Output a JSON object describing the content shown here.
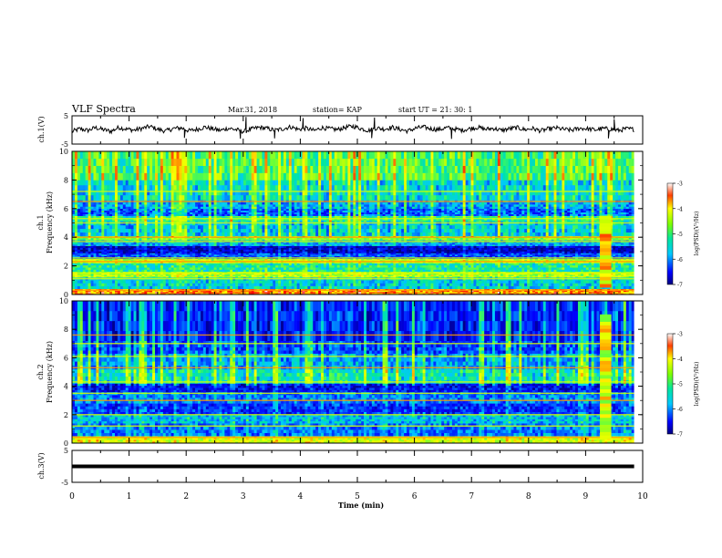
{
  "header": {
    "title": "VLF Spectra",
    "date": "Mar.31, 2018",
    "station": "station= KAP",
    "start_time": "start  UT  =   21: 30: 1"
  },
  "chart_data": [
    {
      "type": "line",
      "panel": "ch1-waveform",
      "ylabel": "ch.1(V)",
      "ylim": [
        -5,
        5
      ],
      "yticks": [
        -5,
        5
      ],
      "xlim": [
        0,
        10
      ],
      "x_extent": [
        0,
        9.85
      ],
      "values_V": [
        -0.6,
        0.4,
        -0.2,
        0.8,
        0.1,
        -0.5,
        0.9,
        0.3,
        -0.1,
        0.6,
        1.2,
        0.2,
        -0.4,
        0.5,
        0.7,
        -0.3,
        0.2,
        1.0,
        0.4,
        -0.2,
        0.6,
        0.1,
        -0.6,
        0.3,
        0.9,
        0.5,
        -0.1,
        0.4,
        1.1,
        0.2,
        0.6,
        -0.3,
        0.8,
        0.4,
        0.1,
        0.9,
        1.3,
        0.5,
        -0.2,
        0.7,
        0.3,
        0.9,
        0.2,
        -0.4,
        0.6,
        1.0,
        0.4,
        0.1,
        0.8,
        0.3,
        -0.1,
        0.5,
        0.9,
        0.2,
        0.6,
        -0.2,
        0.4,
        0.8,
        0.1,
        0.5,
        -0.3,
        0.3,
        0.7,
        0.2,
        -0.1,
        0.6,
        0.4,
        0.0,
        0.5,
        0.3,
        -0.2,
        0.4,
        0.2
      ],
      "spikes": [
        [
          1.97,
          -2.8
        ],
        [
          2.95,
          -3.1
        ],
        [
          3.05,
          4.6
        ],
        [
          3.55,
          -3.0
        ],
        [
          4.05,
          4.2
        ],
        [
          5.25,
          -2.9
        ],
        [
          5.3,
          4.4
        ],
        [
          6.65,
          -3.2
        ],
        [
          9.4,
          -3.0
        ],
        [
          9.5,
          3.8
        ]
      ]
    },
    {
      "type": "heatmap",
      "panel": "ch1-spectrogram",
      "ylabel": "Frequency (kHz)",
      "channel_label": "ch.1",
      "ylim": [
        0,
        10
      ],
      "yticks": [
        0,
        2,
        4,
        6,
        8,
        10
      ],
      "colorbar": {
        "label": "log(PSD)(V²/Hz)",
        "range": [
          -7,
          -3
        ],
        "ticks": [
          -3,
          -4,
          -5,
          -6,
          -7
        ]
      },
      "bands": [
        {
          "f0": 0.0,
          "f1": 0.4,
          "level": -3.8
        },
        {
          "f0": 0.4,
          "f1": 1.2,
          "level": -5.6
        },
        {
          "f0": 1.2,
          "f1": 1.6,
          "level": -4.6
        },
        {
          "f0": 1.6,
          "f1": 2.2,
          "level": -5.3
        },
        {
          "f0": 2.2,
          "f1": 2.5,
          "level": -4.5
        },
        {
          "f0": 2.5,
          "f1": 2.9,
          "level": -6.2
        },
        {
          "f0": 2.9,
          "f1": 3.4,
          "level": -6.7
        },
        {
          "f0": 3.4,
          "f1": 3.8,
          "level": -5.8
        },
        {
          "f0": 3.8,
          "f1": 4.1,
          "level": -4.8
        },
        {
          "f0": 4.1,
          "f1": 5.1,
          "level": -5.6
        },
        {
          "f0": 5.1,
          "f1": 5.5,
          "level": -5.2
        },
        {
          "f0": 5.5,
          "f1": 6.0,
          "level": -6.1
        },
        {
          "f0": 6.0,
          "f1": 6.6,
          "level": -5.8
        },
        {
          "f0": 6.6,
          "f1": 8.0,
          "level": -5.5
        },
        {
          "f0": 8.0,
          "f1": 10.0,
          "level": -5.0
        }
      ],
      "lines_kHz": [
        0.3,
        1.1,
        1.5,
        2.3,
        2.55,
        3.7,
        4.0,
        5.0,
        5.3,
        6.5,
        7.2
      ],
      "burst": {
        "t0": 9.25,
        "t1": 9.45,
        "f0": 0.5,
        "f1": 5.5,
        "level": -4.0
      }
    },
    {
      "type": "heatmap",
      "panel": "ch2-spectrogram",
      "ylabel": "Frequency (kHz)",
      "channel_label": "ch.2",
      "ylim": [
        0,
        10
      ],
      "yticks": [
        0,
        2,
        4,
        6,
        8,
        10
      ],
      "colorbar": {
        "label": "log(PSD)(V²/Hz)",
        "range": [
          -7,
          -3
        ],
        "ticks": [
          -3,
          -4,
          -5,
          -6,
          -7
        ]
      },
      "bands": [
        {
          "f0": 0.0,
          "f1": 0.5,
          "level": -4.4
        },
        {
          "f0": 0.5,
          "f1": 1.4,
          "level": -6.0
        },
        {
          "f0": 1.4,
          "f1": 2.0,
          "level": -5.7
        },
        {
          "f0": 2.0,
          "f1": 2.8,
          "level": -6.3
        },
        {
          "f0": 2.8,
          "f1": 3.6,
          "level": -6.0
        },
        {
          "f0": 3.6,
          "f1": 4.2,
          "level": -6.5
        },
        {
          "f0": 4.2,
          "f1": 5.2,
          "level": -5.4
        },
        {
          "f0": 5.2,
          "f1": 6.3,
          "level": -5.8
        },
        {
          "f0": 6.3,
          "f1": 7.2,
          "level": -6.2
        },
        {
          "f0": 7.2,
          "f1": 10.0,
          "level": -6.4
        }
      ],
      "lines_kHz": [
        0.4,
        1.2,
        2.0,
        3.0,
        3.5,
        4.3,
        5.3,
        6.1,
        7.0,
        7.6
      ],
      "burst": {
        "t0": 9.25,
        "t1": 9.45,
        "f0": 0.3,
        "f1": 9.0,
        "level": -4.3
      }
    },
    {
      "type": "line",
      "panel": "ch3-waveform",
      "ylabel": "ch.3(V)",
      "ylim": [
        -5,
        5
      ],
      "yticks": [
        -5,
        5
      ],
      "xlim": [
        0,
        10
      ],
      "x_extent": [
        0,
        9.85
      ],
      "constant_V": 0.0,
      "xlabel": "Time (min)",
      "xticks": [
        0,
        1,
        2,
        3,
        4,
        5,
        6,
        7,
        8,
        9,
        10
      ]
    }
  ]
}
